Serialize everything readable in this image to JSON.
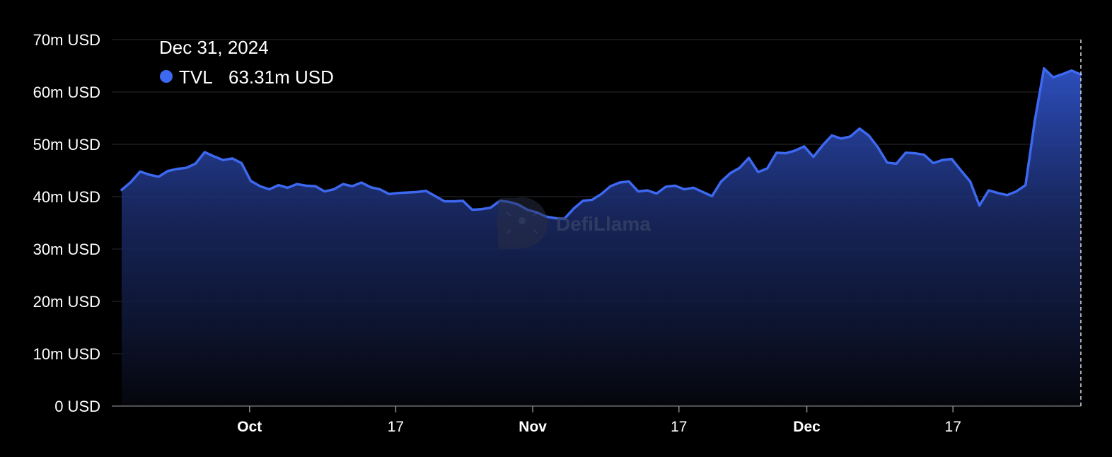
{
  "chart_data": {
    "type": "area",
    "series": [
      {
        "name": "TVL",
        "color": "#3d68f0",
        "values": [
          41.3,
          42.8,
          44.8,
          44.2,
          43.8,
          44.9,
          45.3,
          45.5,
          46.3,
          48.5,
          47.7,
          47.0,
          47.3,
          46.4,
          43.0,
          42.0,
          41.4,
          42.2,
          41.7,
          42.4,
          42.1,
          42.0,
          41.0,
          41.4,
          42.4,
          42.0,
          42.7,
          41.8,
          41.4,
          40.5,
          40.7,
          40.8,
          40.9,
          41.1,
          40.1,
          39.1,
          39.1,
          39.2,
          37.5,
          37.6,
          37.9,
          39.2,
          39.0,
          38.5,
          37.5,
          37.0,
          36.2,
          35.9,
          35.8,
          37.7,
          39.2,
          39.4,
          40.5,
          42.0,
          42.7,
          42.9,
          41.0,
          41.2,
          40.6,
          41.9,
          42.1,
          41.4,
          41.7,
          40.9,
          40.1,
          42.9,
          44.5,
          45.5,
          47.4,
          44.7,
          45.4,
          48.4,
          48.3,
          48.8,
          49.6,
          47.6,
          49.8,
          51.7,
          51.1,
          51.5,
          53.0,
          51.7,
          49.4,
          46.5,
          46.3,
          48.4,
          48.3,
          48.0,
          46.4,
          47.0,
          47.2,
          45.0,
          42.9,
          38.3,
          41.2,
          40.7,
          40.3,
          41.0,
          42.2,
          54.5,
          64.5,
          62.8,
          63.4,
          64.1,
          63.31
        ]
      }
    ],
    "x_start": "2024-09-17",
    "x_end": "2024-12-31",
    "x_ticks": [
      {
        "label": "Oct",
        "date": "2024-10-01",
        "bold": true
      },
      {
        "label": "17",
        "date": "2024-10-17",
        "bold": false
      },
      {
        "label": "Nov",
        "date": "2024-11-01",
        "bold": true
      },
      {
        "label": "17",
        "date": "2024-11-17",
        "bold": false
      },
      {
        "label": "Dec",
        "date": "2024-12-01",
        "bold": true
      },
      {
        "label": "17",
        "date": "2024-12-17",
        "bold": false
      }
    ],
    "y_ticks": [
      {
        "value": 0,
        "label": "0 USD"
      },
      {
        "value": 10,
        "label": "10m USD"
      },
      {
        "value": 20,
        "label": "20m USD"
      },
      {
        "value": 30,
        "label": "30m USD"
      },
      {
        "value": 40,
        "label": "40m USD"
      },
      {
        "value": 50,
        "label": "50m USD"
      },
      {
        "value": 60,
        "label": "60m USD"
      },
      {
        "value": 70,
        "label": "70m USD"
      }
    ],
    "ylim": [
      0,
      70
    ],
    "grid": true,
    "tooltip": {
      "date": "Dec 31, 2024",
      "series": "TVL",
      "value": "63.31m USD"
    },
    "watermark": "DefiLlama"
  }
}
